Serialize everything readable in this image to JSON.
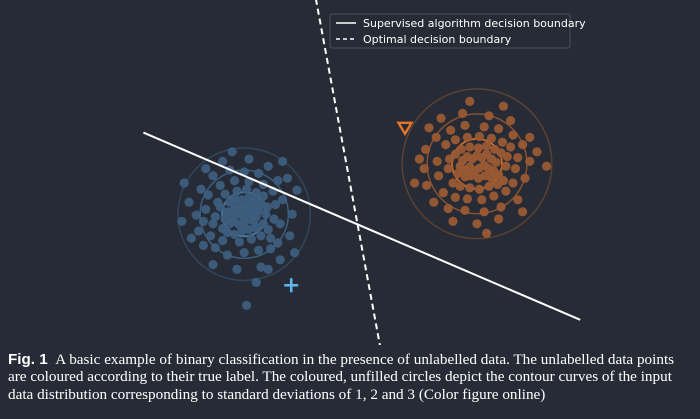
{
  "chart_data": {
    "type": "scatter",
    "title": "",
    "xlabel": "",
    "ylabel": "",
    "axes_visible": false,
    "grid": false,
    "legend_placement": "top-right",
    "legend": [
      {
        "label": "Supervised algorithm decision boundary",
        "style": "solid",
        "color": "#ffffff"
      },
      {
        "label": "Optimal decision boundary",
        "style": "dashed",
        "color": "#ffffff"
      }
    ],
    "classes": [
      {
        "color": "#3d5e80",
        "contour_color": "#4f86b4",
        "center": [
          -2.1,
          -0.4
        ],
        "std": 0.46,
        "contours_std": [
          1,
          2,
          3
        ],
        "labelled_point": {
          "marker": "plus",
          "color": "#5cb6f0",
          "x": -1.12,
          "y": -1.88
        },
        "points": [
          [
            -2.5,
            -0.5
          ],
          [
            -2.4,
            -0.6
          ],
          [
            -2.3,
            -0.55
          ],
          [
            -2.2,
            -0.62
          ],
          [
            -2.1,
            -0.58
          ],
          [
            -2.0,
            -0.5
          ],
          [
            -1.9,
            -0.55
          ],
          [
            -2.35,
            -0.45
          ],
          [
            -2.25,
            -0.38
          ],
          [
            -2.15,
            -0.42
          ],
          [
            -2.05,
            -0.35
          ],
          [
            -1.95,
            -0.4
          ],
          [
            -1.85,
            -0.45
          ],
          [
            -2.45,
            -0.35
          ],
          [
            -2.3,
            -0.28
          ],
          [
            -2.2,
            -0.22
          ],
          [
            -2.1,
            -0.26
          ],
          [
            -2.0,
            -0.2
          ],
          [
            -1.9,
            -0.28
          ],
          [
            -1.8,
            -0.32
          ],
          [
            -2.6,
            -0.25
          ],
          [
            -2.4,
            -0.15
          ],
          [
            -2.3,
            -0.08
          ],
          [
            -2.15,
            -0.1
          ],
          [
            -2.0,
            -0.05
          ],
          [
            -1.88,
            -0.12
          ],
          [
            -1.75,
            -0.18
          ],
          [
            -2.55,
            -0.7
          ],
          [
            -2.45,
            -0.78
          ],
          [
            -2.3,
            -0.82
          ],
          [
            -2.15,
            -0.75
          ],
          [
            -2.0,
            -0.72
          ],
          [
            -1.85,
            -0.68
          ],
          [
            -1.7,
            -0.6
          ],
          [
            -2.7,
            -0.45
          ],
          [
            -2.75,
            -0.6
          ],
          [
            -2.65,
            -0.15
          ],
          [
            -2.5,
            0.02
          ],
          [
            -2.25,
            0.08
          ],
          [
            -2.05,
            0.12
          ],
          [
            -1.85,
            0.05
          ],
          [
            -1.7,
            -0.02
          ],
          [
            -1.65,
            -0.4
          ],
          [
            -1.62,
            -0.25
          ],
          [
            -2.8,
            -0.85
          ],
          [
            -2.55,
            -0.95
          ],
          [
            -2.2,
            -0.98
          ],
          [
            -1.95,
            -0.92
          ],
          [
            -1.75,
            -0.85
          ],
          [
            -1.6,
            -0.72
          ],
          [
            -2.9,
            -0.3
          ],
          [
            -2.95,
            -0.55
          ],
          [
            -2.85,
            0.0
          ],
          [
            -2.6,
            0.2
          ],
          [
            -2.3,
            0.3
          ],
          [
            -2.0,
            0.28
          ],
          [
            -1.7,
            0.22
          ],
          [
            -1.5,
            0.08
          ],
          [
            -1.45,
            -0.2
          ],
          [
            -1.48,
            -0.5
          ],
          [
            -1.55,
            -0.9
          ],
          [
            -3.1,
            -0.42
          ],
          [
            -3.05,
            -0.75
          ],
          [
            -3.0,
            0.12
          ],
          [
            -2.75,
            0.4
          ],
          [
            -2.4,
            0.52
          ],
          [
            -2.1,
            0.48
          ],
          [
            -1.8,
            0.45
          ],
          [
            -1.4,
            0.3
          ],
          [
            -1.3,
            -0.1
          ],
          [
            -1.35,
            -0.6
          ],
          [
            -1.4,
            -1.0
          ],
          [
            -2.7,
            -1.1
          ],
          [
            -2.45,
            -1.25
          ],
          [
            -2.1,
            -1.2
          ],
          [
            -1.8,
            -1.15
          ],
          [
            -1.55,
            -1.12
          ],
          [
            -3.25,
            -0.15
          ],
          [
            -3.2,
            -0.9
          ],
          [
            -2.95,
            -1.05
          ],
          [
            -2.55,
            0.7
          ],
          [
            -2.0,
            0.75
          ],
          [
            -1.6,
            0.6
          ],
          [
            -1.2,
            0.35
          ],
          [
            -1.1,
            -0.4
          ],
          [
            -1.15,
            -0.85
          ],
          [
            -1.35,
            -1.35
          ],
          [
            -1.75,
            -1.5
          ],
          [
            -2.25,
            -1.55
          ],
          [
            -2.75,
            -1.45
          ],
          [
            -3.4,
            -0.55
          ],
          [
            -2.9,
            0.55
          ],
          [
            -1.85,
            -1.82
          ],
          [
            -2.05,
            -2.3
          ],
          [
            -1.0,
            0.1
          ],
          [
            -1.3,
            0.7
          ],
          [
            -2.35,
            0.9
          ],
          [
            -3.35,
            0.25
          ],
          [
            -1.6,
            -1.55
          ],
          [
            -1.05,
            -1.2
          ]
        ]
      },
      {
        "color": "#9a5a34",
        "contour_color": "#d9732c",
        "center": [
          2.75,
          0.65
        ],
        "std": 0.52,
        "contours_std": [
          1,
          2,
          3
        ],
        "labelled_point": {
          "marker": "triangle-down",
          "color": "#e8752a",
          "x": 1.25,
          "y": 1.4
        },
        "points": [
          [
            2.4,
            0.6
          ],
          [
            2.5,
            0.52
          ],
          [
            2.6,
            0.58
          ],
          [
            2.7,
            0.5
          ],
          [
            2.8,
            0.56
          ],
          [
            2.9,
            0.62
          ],
          [
            3.0,
            0.55
          ],
          [
            3.1,
            0.5
          ],
          [
            2.45,
            0.72
          ],
          [
            2.55,
            0.8
          ],
          [
            2.65,
            0.75
          ],
          [
            2.75,
            0.82
          ],
          [
            2.85,
            0.78
          ],
          [
            2.95,
            0.85
          ],
          [
            3.05,
            0.75
          ],
          [
            3.15,
            0.68
          ],
          [
            2.35,
            0.45
          ],
          [
            2.5,
            0.38
          ],
          [
            2.62,
            0.4
          ],
          [
            2.78,
            0.35
          ],
          [
            2.92,
            0.4
          ],
          [
            3.05,
            0.36
          ],
          [
            3.2,
            0.42
          ],
          [
            2.3,
            0.85
          ],
          [
            2.42,
            0.95
          ],
          [
            2.6,
            1.0
          ],
          [
            2.78,
            0.98
          ],
          [
            2.95,
            1.02
          ],
          [
            3.12,
            0.95
          ],
          [
            3.25,
            0.88
          ],
          [
            2.25,
            0.25
          ],
          [
            2.4,
            0.18
          ],
          [
            2.6,
            0.15
          ],
          [
            2.8,
            0.12
          ],
          [
            3.0,
            0.18
          ],
          [
            3.18,
            0.22
          ],
          [
            3.3,
            0.3
          ],
          [
            2.15,
            0.55
          ],
          [
            2.18,
            0.75
          ],
          [
            3.35,
            0.6
          ],
          [
            3.38,
            0.8
          ],
          [
            2.1,
            1.05
          ],
          [
            2.3,
            1.15
          ],
          [
            2.55,
            1.2
          ],
          [
            2.8,
            1.22
          ],
          [
            3.05,
            1.18
          ],
          [
            3.28,
            1.1
          ],
          [
            3.45,
            1.0
          ],
          [
            2.05,
            0.05
          ],
          [
            2.3,
            -0.05
          ],
          [
            2.55,
            -0.08
          ],
          [
            2.85,
            -0.1
          ],
          [
            3.1,
            -0.02
          ],
          [
            3.35,
            0.08
          ],
          [
            3.5,
            0.25
          ],
          [
            1.95,
            0.4
          ],
          [
            1.92,
            0.7
          ],
          [
            3.55,
            0.55
          ],
          [
            3.6,
            0.78
          ],
          [
            1.9,
            1.2
          ],
          [
            2.2,
            1.35
          ],
          [
            2.5,
            1.45
          ],
          [
            2.9,
            1.42
          ],
          [
            3.2,
            1.38
          ],
          [
            3.5,
            1.25
          ],
          [
            3.7,
            1.05
          ],
          [
            1.85,
            -0.15
          ],
          [
            2.15,
            -0.28
          ],
          [
            2.5,
            -0.32
          ],
          [
            2.9,
            -0.35
          ],
          [
            3.25,
            -0.25
          ],
          [
            3.6,
            -0.1
          ],
          [
            3.75,
            0.35
          ],
          [
            1.7,
            0.2
          ],
          [
            1.65,
            0.55
          ],
          [
            1.68,
            0.95
          ],
          [
            3.85,
            0.7
          ],
          [
            2.0,
            1.6
          ],
          [
            2.45,
            1.7
          ],
          [
            3.0,
            1.65
          ],
          [
            3.45,
            1.55
          ],
          [
            3.85,
            1.2
          ],
          [
            2.25,
            -0.55
          ],
          [
            2.75,
            -0.6
          ],
          [
            3.2,
            -0.5
          ],
          [
            3.7,
            -0.35
          ],
          [
            1.55,
            0.75
          ],
          [
            1.45,
            0.25
          ],
          [
            4.0,
            0.9
          ],
          [
            2.6,
            1.95
          ],
          [
            3.3,
            1.85
          ],
          [
            1.75,
            1.4
          ],
          [
            2.95,
            -0.8
          ],
          [
            4.2,
            0.6
          ]
        ]
      }
    ],
    "decision_boundaries": [
      {
        "name": "supervised",
        "style": "solid",
        "points": [
          [
            -4.2,
            1.3
          ],
          [
            4.9,
            -2.6
          ]
        ]
      },
      {
        "name": "optimal",
        "style": "dashed",
        "points": [
          [
            -0.72,
            4.7
          ],
          [
            0.74,
            -3.2
          ]
        ]
      }
    ]
  },
  "caption": {
    "label": "Fig. 1",
    "text": "A basic example of binary classification in the presence of unlabelled data. The unlabelled data points are coloured according to their true label. The coloured, unfilled circles depict the contour curves of the input data distribution corresponding to standard deviations of 1, 2 and 3 (Color figure online)"
  }
}
